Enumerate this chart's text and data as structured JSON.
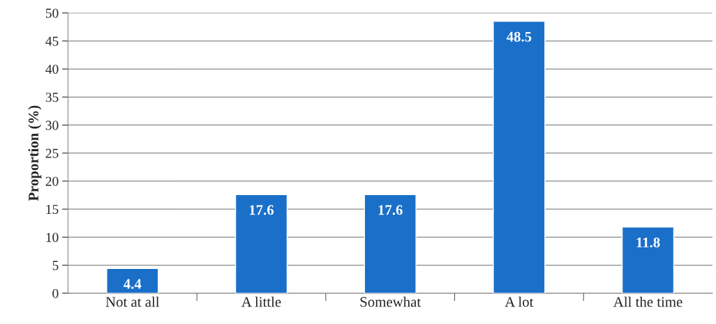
{
  "chart_data": {
    "type": "bar",
    "ylabel": "Proportion (%)",
    "categories": [
      "Not at all",
      "A little",
      "Somewhat",
      "A lot",
      "All the time"
    ],
    "values": [
      4.4,
      17.6,
      17.6,
      48.5,
      11.8
    ],
    "color": "#1a6fc9",
    "ylim": [
      0,
      50
    ],
    "yticks": [
      0,
      5,
      10,
      15,
      20,
      25,
      30,
      35,
      40,
      45,
      50
    ],
    "grid": "y",
    "data_labels": true
  }
}
